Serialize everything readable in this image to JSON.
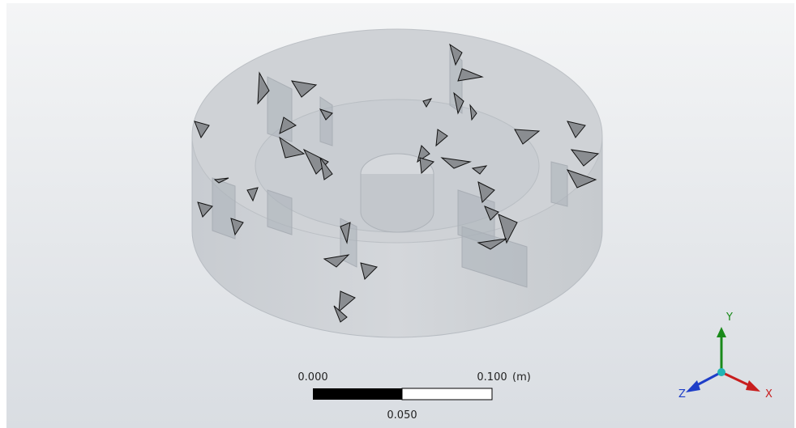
{
  "scale_bar": {
    "start_label": "0.000",
    "end_label": "0.100",
    "unit": "(m)",
    "mid_label": "0.050"
  },
  "triad": {
    "y_label": "Y",
    "x_label": "X",
    "z_label": "Z"
  }
}
